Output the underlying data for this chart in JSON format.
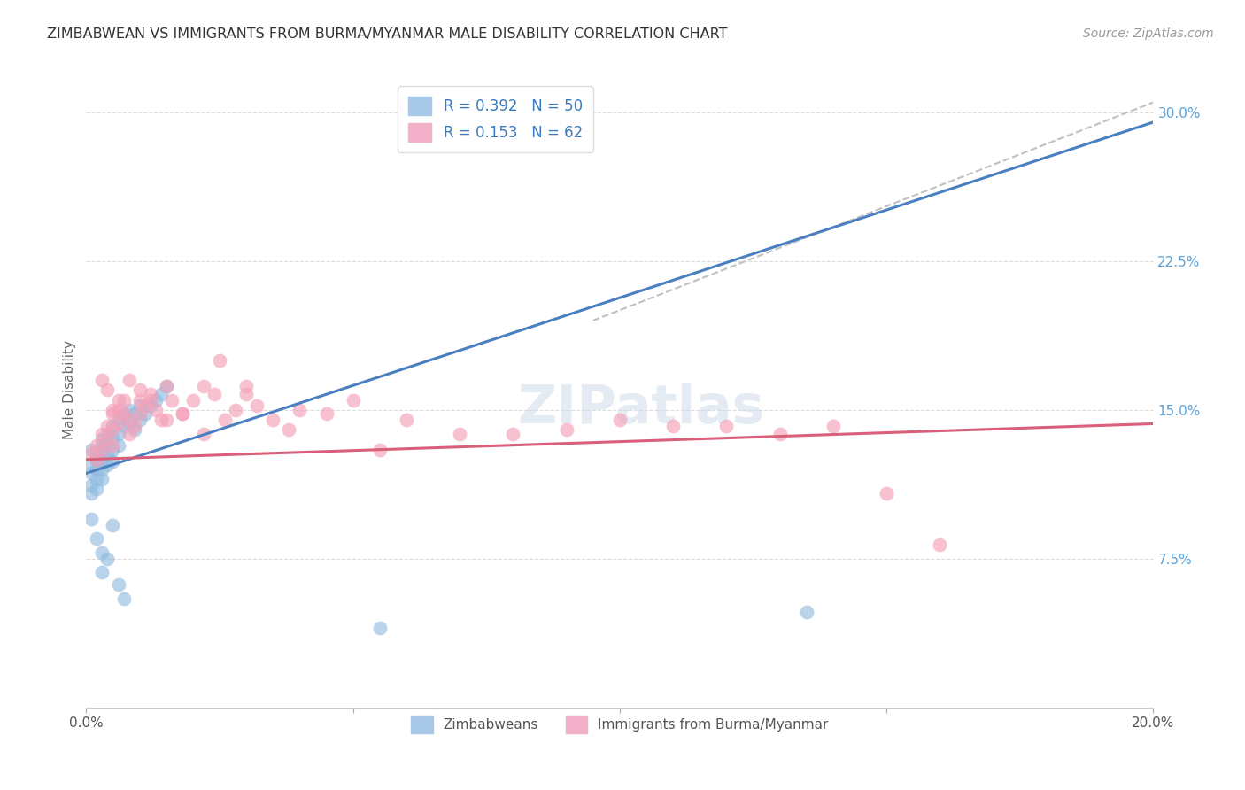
{
  "title": "ZIMBABWEAN VS IMMIGRANTS FROM BURMA/MYANMAR MALE DISABILITY CORRELATION CHART",
  "source": "Source: ZipAtlas.com",
  "ylabel": "Male Disability",
  "xlim": [
    0.0,
    0.2
  ],
  "ylim": [
    0.0,
    0.32
  ],
  "xticks": [
    0.0,
    0.05,
    0.1,
    0.15,
    0.2
  ],
  "yticks_right": [
    0.075,
    0.15,
    0.225,
    0.3
  ],
  "ytick_labels_right": [
    "7.5%",
    "15.0%",
    "22.5%",
    "30.0%"
  ],
  "xtick_labels": [
    "0.0%",
    "",
    "",
    "",
    "20.0%"
  ],
  "legend_label_zim": "Zimbabweans",
  "legend_label_bur": "Immigrants from Burma/Myanmar",
  "blue_scatter_color": "#92bce0",
  "pink_scatter_color": "#f4a0b8",
  "blue_line_color": "#4a7fc0",
  "pink_line_color": "#d95f7a",
  "dashed_line_color": "#c0c0c0",
  "watermark": "ZIPatlas",
  "blue_line_x": [
    0.0,
    0.2
  ],
  "blue_line_y": [
    0.118,
    0.295
  ],
  "pink_line_x": [
    0.0,
    0.2
  ],
  "pink_line_y": [
    0.125,
    0.143
  ],
  "dash_line_x": [
    0.095,
    0.2
  ],
  "dash_line_y": [
    0.195,
    0.305
  ],
  "zim_x": [
    0.001,
    0.001,
    0.001,
    0.001,
    0.001,
    0.002,
    0.002,
    0.002,
    0.002,
    0.002,
    0.003,
    0.003,
    0.003,
    0.003,
    0.003,
    0.003,
    0.004,
    0.004,
    0.004,
    0.004,
    0.005,
    0.005,
    0.005,
    0.005,
    0.006,
    0.006,
    0.006,
    0.007,
    0.007,
    0.008,
    0.008,
    0.009,
    0.009,
    0.01,
    0.01,
    0.011,
    0.012,
    0.013,
    0.014,
    0.015,
    0.001,
    0.002,
    0.003,
    0.003,
    0.004,
    0.005,
    0.006,
    0.007,
    0.055,
    0.135
  ],
  "zim_y": [
    0.13,
    0.122,
    0.118,
    0.112,
    0.108,
    0.128,
    0.125,
    0.12,
    0.115,
    0.11,
    0.135,
    0.132,
    0.128,
    0.124,
    0.12,
    0.115,
    0.138,
    0.133,
    0.128,
    0.122,
    0.142,
    0.136,
    0.13,
    0.124,
    0.145,
    0.138,
    0.132,
    0.148,
    0.142,
    0.15,
    0.143,
    0.148,
    0.14,
    0.152,
    0.145,
    0.148,
    0.152,
    0.155,
    0.158,
    0.162,
    0.095,
    0.085,
    0.078,
    0.068,
    0.075,
    0.092,
    0.062,
    0.055,
    0.04,
    0.048
  ],
  "bur_x": [
    0.001,
    0.002,
    0.002,
    0.003,
    0.003,
    0.004,
    0.004,
    0.005,
    0.005,
    0.005,
    0.006,
    0.006,
    0.007,
    0.007,
    0.008,
    0.008,
    0.009,
    0.01,
    0.01,
    0.011,
    0.012,
    0.013,
    0.014,
    0.015,
    0.016,
    0.018,
    0.02,
    0.022,
    0.024,
    0.026,
    0.028,
    0.03,
    0.032,
    0.035,
    0.038,
    0.04,
    0.045,
    0.05,
    0.055,
    0.06,
    0.07,
    0.08,
    0.09,
    0.1,
    0.11,
    0.12,
    0.13,
    0.14,
    0.15,
    0.16,
    0.003,
    0.004,
    0.005,
    0.006,
    0.008,
    0.01,
    0.012,
    0.015,
    0.018,
    0.022,
    0.025,
    0.03
  ],
  "bur_y": [
    0.128,
    0.132,
    0.125,
    0.138,
    0.13,
    0.142,
    0.135,
    0.148,
    0.14,
    0.132,
    0.15,
    0.143,
    0.155,
    0.148,
    0.145,
    0.138,
    0.142,
    0.155,
    0.148,
    0.152,
    0.158,
    0.15,
    0.145,
    0.162,
    0.155,
    0.148,
    0.155,
    0.162,
    0.158,
    0.145,
    0.15,
    0.158,
    0.152,
    0.145,
    0.14,
    0.15,
    0.148,
    0.155,
    0.13,
    0.145,
    0.138,
    0.138,
    0.14,
    0.145,
    0.142,
    0.142,
    0.138,
    0.142,
    0.108,
    0.082,
    0.165,
    0.16,
    0.15,
    0.155,
    0.165,
    0.16,
    0.155,
    0.145,
    0.148,
    0.138,
    0.175,
    0.162
  ]
}
